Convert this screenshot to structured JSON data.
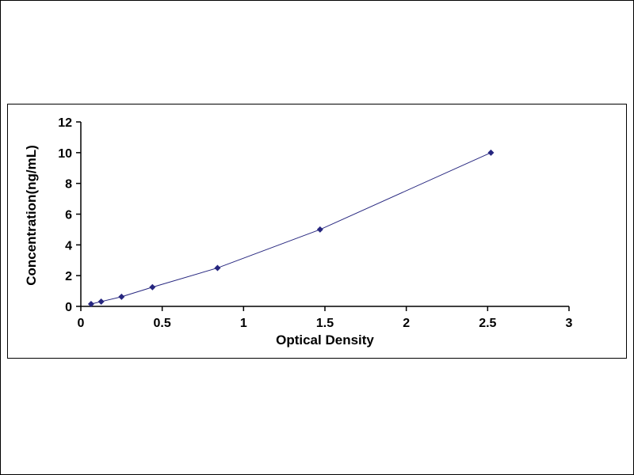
{
  "chart_data": {
    "type": "line",
    "title": "",
    "xlabel": "Optical Density",
    "ylabel": "Concentration(ng/mL)",
    "xlim": [
      0,
      3
    ],
    "ylim": [
      0,
      12
    ],
    "x_ticks": [
      "0",
      "0.5",
      "1",
      "1.5",
      "2",
      "2.5",
      "3"
    ],
    "y_ticks": [
      "0",
      "2",
      "4",
      "6",
      "8",
      "10",
      "12"
    ],
    "points": [
      {
        "x": 0.063,
        "y": 0.156
      },
      {
        "x": 0.125,
        "y": 0.312
      },
      {
        "x": 0.25,
        "y": 0.625
      },
      {
        "x": 0.44,
        "y": 1.25
      },
      {
        "x": 0.84,
        "y": 2.5
      },
      {
        "x": 1.47,
        "y": 5.0
      },
      {
        "x": 2.52,
        "y": 10.0
      }
    ],
    "grid": false,
    "legend": "none",
    "marker": "diamond",
    "line_color": "#26267f",
    "marker_color": "#26267f",
    "axis_color": "#000000",
    "background_color": "#ffffff"
  }
}
